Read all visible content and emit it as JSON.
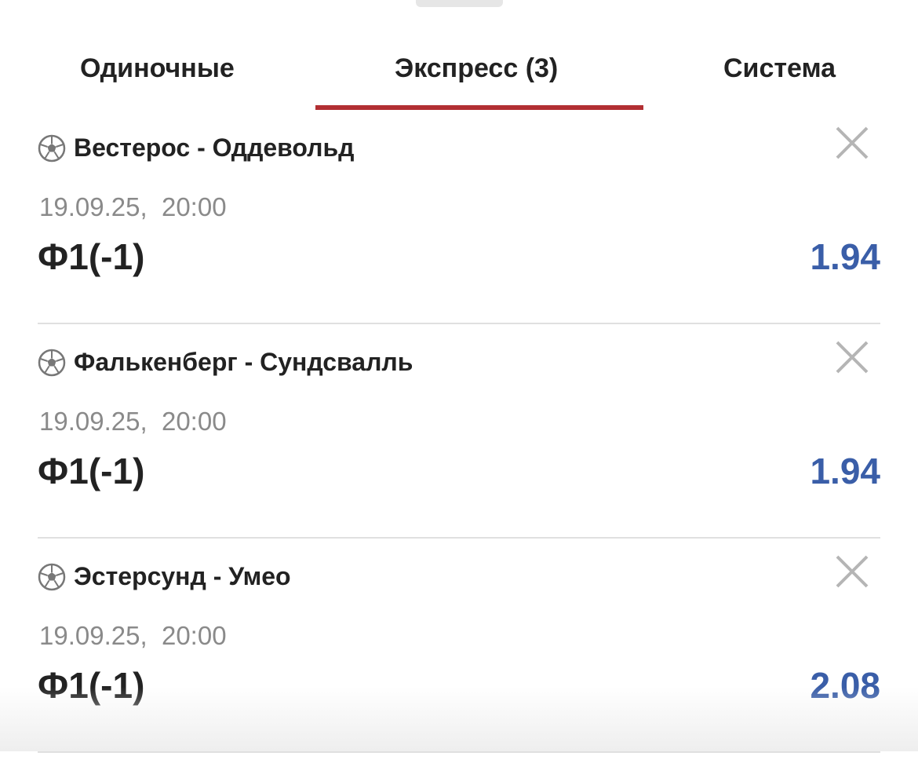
{
  "tabs": [
    {
      "label": "Одиночные",
      "active": false
    },
    {
      "label": "Экспресс (3)",
      "active": true
    },
    {
      "label": "Система",
      "active": false
    }
  ],
  "colors": {
    "accent": "#b22f33",
    "odds": "#3a5ea8"
  },
  "bets": [
    {
      "sport_icon": "soccer-ball-icon",
      "match": "Вестерос - Оддевольд",
      "datetime": "19.09.25,  20:00",
      "market": "Ф1(-1)",
      "odds": "1.94"
    },
    {
      "sport_icon": "soccer-ball-icon",
      "match": "Фалькенберг - Сундсвалль",
      "datetime": "19.09.25,  20:00",
      "market": "Ф1(-1)",
      "odds": "1.94"
    },
    {
      "sport_icon": "soccer-ball-icon",
      "match": "Эстерсунд - Умео",
      "datetime": "19.09.25,  20:00",
      "market": "Ф1(-1)",
      "odds": "2.08"
    }
  ]
}
